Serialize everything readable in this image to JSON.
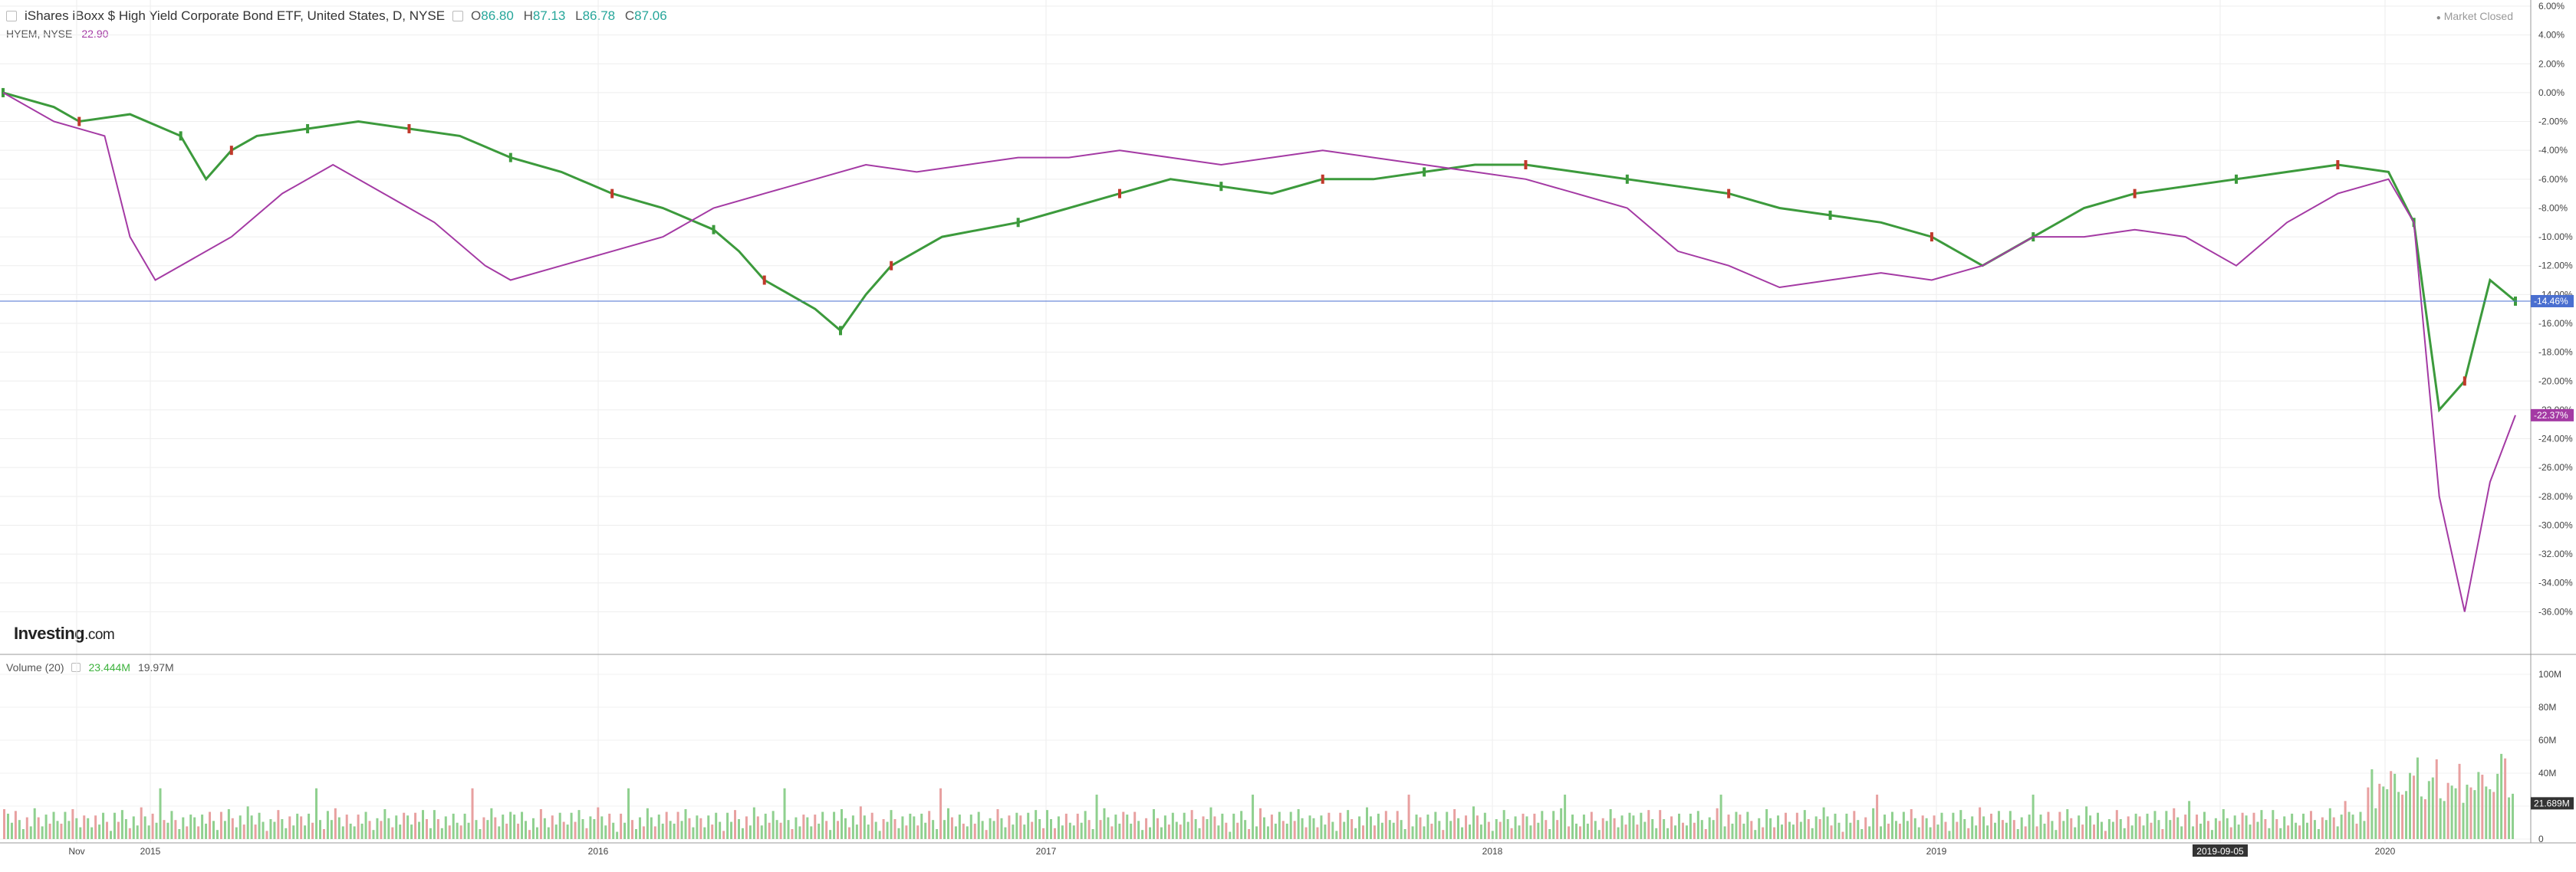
{
  "header": {
    "title": "iShares iBoxx $ High Yield Corporate Bond ETF, United States, D, NYSE",
    "open_label": "O",
    "open": "86.80",
    "high_label": "H",
    "high": "87.13",
    "low_label": "L",
    "low": "86.78",
    "close_label": "C",
    "close": "87.06"
  },
  "compare": {
    "symbol": "HYEM, NYSE",
    "value": "22.90"
  },
  "market_status": "Market Closed",
  "brand": {
    "name": "Investing",
    "suffix": ".com"
  },
  "volume_panel": {
    "label": "Volume (20)",
    "value1": "23.444M",
    "value2": "19.97M"
  },
  "colors": {
    "up": "#3c9a3c",
    "down": "#c0392b",
    "compare_line": "#a43aa4",
    "price_line": "#4a6fd0",
    "vol_up": "#8fd08f",
    "vol_down": "#e8a0a0"
  },
  "chart_data": {
    "type": "line",
    "x_labels": [
      "Nov",
      "2015",
      "2016",
      "2017",
      "2018",
      "2019",
      "2019-09-05",
      "2020"
    ],
    "y_ticks": [
      "6.00%",
      "4.00%",
      "2.00%",
      "0.00%",
      "-2.00%",
      "-4.00%",
      "-6.00%",
      "-8.00%",
      "-10.00%",
      "-12.00%",
      "-14.00%",
      "-16.00%",
      "-18.00%",
      "-20.00%",
      "-22.00%",
      "-24.00%",
      "-26.00%",
      "-28.00%",
      "-30.00%",
      "-32.00%",
      "-34.00%",
      "-36.00%"
    ],
    "ylim": [
      -38,
      6
    ],
    "price_marker": "-14.46%",
    "compare_marker": "-22.37%",
    "series": [
      {
        "name": "iShares iBoxx $ High Yield Corporate Bond ETF",
        "points": [
          [
            0,
            0
          ],
          [
            2,
            -1
          ],
          [
            3,
            -2
          ],
          [
            5,
            -1.5
          ],
          [
            7,
            -3
          ],
          [
            8,
            -6
          ],
          [
            9,
            -4
          ],
          [
            10,
            -3
          ],
          [
            12,
            -2.5
          ],
          [
            14,
            -2
          ],
          [
            16,
            -2.5
          ],
          [
            18,
            -3
          ],
          [
            20,
            -4.5
          ],
          [
            22,
            -5.5
          ],
          [
            24,
            -7
          ],
          [
            26,
            -8
          ],
          [
            28,
            -9.5
          ],
          [
            29,
            -11
          ],
          [
            30,
            -13
          ],
          [
            32,
            -15
          ],
          [
            33,
            -16.5
          ],
          [
            34,
            -14
          ],
          [
            35,
            -12
          ],
          [
            37,
            -10
          ],
          [
            40,
            -9
          ],
          [
            42,
            -8
          ],
          [
            44,
            -7
          ],
          [
            46,
            -6
          ],
          [
            48,
            -6.5
          ],
          [
            50,
            -7
          ],
          [
            52,
            -6
          ],
          [
            54,
            -6
          ],
          [
            56,
            -5.5
          ],
          [
            58,
            -5
          ],
          [
            60,
            -5
          ],
          [
            62,
            -5.5
          ],
          [
            64,
            -6
          ],
          [
            66,
            -6.5
          ],
          [
            68,
            -7
          ],
          [
            70,
            -8
          ],
          [
            72,
            -8.5
          ],
          [
            74,
            -9
          ],
          [
            76,
            -10
          ],
          [
            78,
            -12
          ],
          [
            80,
            -10
          ],
          [
            82,
            -8
          ],
          [
            84,
            -7
          ],
          [
            86,
            -6.5
          ],
          [
            88,
            -6
          ],
          [
            90,
            -5.5
          ],
          [
            92,
            -5
          ],
          [
            94,
            -5.5
          ],
          [
            95,
            -9
          ],
          [
            96,
            -22
          ],
          [
            97,
            -20
          ],
          [
            98,
            -13
          ],
          [
            99,
            -14.46
          ]
        ]
      },
      {
        "name": "HYEM, NYSE",
        "points": [
          [
            0,
            0
          ],
          [
            2,
            -2
          ],
          [
            4,
            -3
          ],
          [
            5,
            -10
          ],
          [
            6,
            -13
          ],
          [
            7,
            -12
          ],
          [
            9,
            -10
          ],
          [
            11,
            -7
          ],
          [
            13,
            -5
          ],
          [
            15,
            -7
          ],
          [
            17,
            -9
          ],
          [
            19,
            -12
          ],
          [
            20,
            -13
          ],
          [
            22,
            -12
          ],
          [
            24,
            -11
          ],
          [
            26,
            -10
          ],
          [
            28,
            -8
          ],
          [
            30,
            -7
          ],
          [
            32,
            -6
          ],
          [
            34,
            -5
          ],
          [
            36,
            -5.5
          ],
          [
            38,
            -5
          ],
          [
            40,
            -4.5
          ],
          [
            42,
            -4.5
          ],
          [
            44,
            -4
          ],
          [
            46,
            -4.5
          ],
          [
            48,
            -5
          ],
          [
            50,
            -4.5
          ],
          [
            52,
            -4
          ],
          [
            54,
            -4.5
          ],
          [
            56,
            -5
          ],
          [
            58,
            -5.5
          ],
          [
            60,
            -6
          ],
          [
            62,
            -7
          ],
          [
            64,
            -8
          ],
          [
            66,
            -11
          ],
          [
            68,
            -12
          ],
          [
            70,
            -13.5
          ],
          [
            72,
            -13
          ],
          [
            74,
            -12.5
          ],
          [
            76,
            -13
          ],
          [
            78,
            -12
          ],
          [
            80,
            -10
          ],
          [
            82,
            -10
          ],
          [
            84,
            -9.5
          ],
          [
            86,
            -10
          ],
          [
            88,
            -12
          ],
          [
            90,
            -9
          ],
          [
            92,
            -7
          ],
          [
            94,
            -6
          ],
          [
            95,
            -9
          ],
          [
            96,
            -28
          ],
          [
            97,
            -36
          ],
          [
            98,
            -27
          ],
          [
            99,
            -22.37
          ]
        ]
      }
    ],
    "volume": {
      "y_ticks": [
        "100M",
        "80M",
        "60M",
        "40M",
        "20M",
        "0"
      ],
      "ylim": [
        0,
        100
      ],
      "marker": "21.689M"
    }
  }
}
